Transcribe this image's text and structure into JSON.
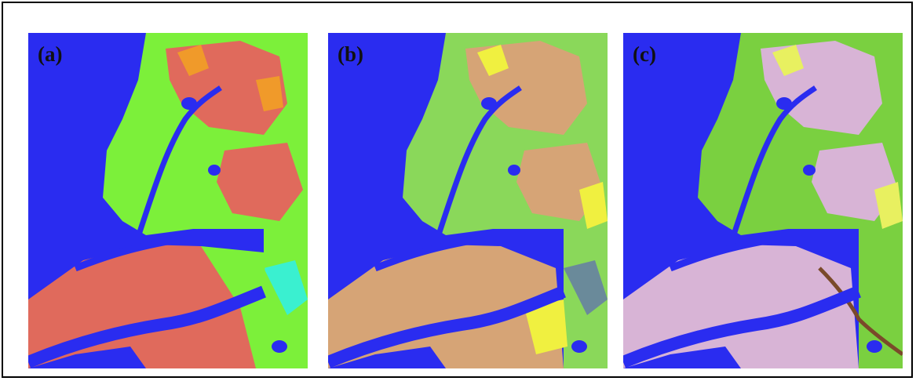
{
  "figure": {
    "panels": [
      {
        "id": "a",
        "label": "(a)",
        "palette": {
          "water": "#2a2cf0",
          "land": "#e06a5c",
          "veg": "#7cf03a",
          "bright": "#f09a2a",
          "accent": "#3af0d0"
        }
      },
      {
        "id": "b",
        "label": "(b)",
        "palette": {
          "water": "#2a2cf0",
          "land": "#d6a476",
          "veg": "#8ad85a",
          "bright": "#f0f040",
          "accent": "#6a8a9a"
        }
      },
      {
        "id": "c",
        "label": "(c)",
        "palette": {
          "water": "#2a2cf0",
          "land": "#d8b4d6",
          "veg": "#7ad040",
          "bright": "#e8f060",
          "accent": "#7a4a2a"
        }
      }
    ]
  }
}
